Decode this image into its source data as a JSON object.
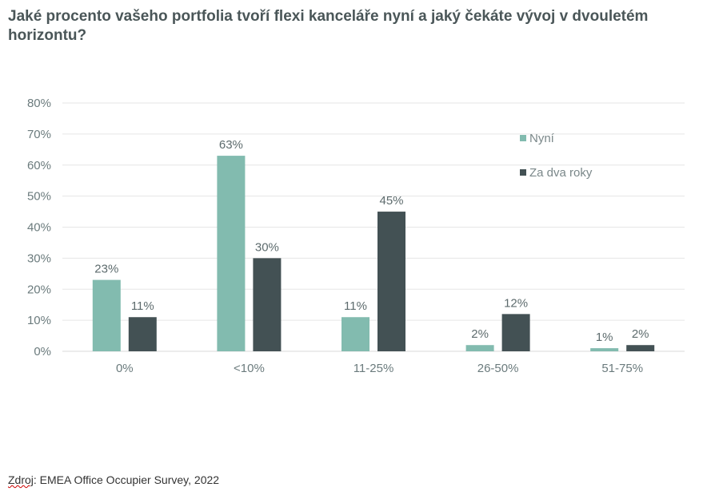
{
  "title": "Jaké procento vašeho portfolia tvoří flexi kanceláře nyní a jaký čekáte vývoj v dvouletém horizontu?",
  "source": {
    "label": "Zdroj",
    "text": ": EMEA Office Occupier Survey, 2022"
  },
  "colors": {
    "nyni": "#82bbaf",
    "za_dva_roky": "#435154",
    "grid": "#e6e6e6",
    "axis_text": "#6b7b7d"
  },
  "chart_data": {
    "type": "bar",
    "categories": [
      "0%",
      "<10%",
      "11-25%",
      "26-50%",
      "51-75%"
    ],
    "series": [
      {
        "name": "Nyní",
        "values": [
          23,
          63,
          11,
          2,
          1
        ]
      },
      {
        "name": "Za dva roky",
        "values": [
          11,
          30,
          45,
          12,
          2
        ]
      }
    ],
    "data_labels": [
      [
        "23%",
        "63%",
        "11%",
        "2%",
        "1%"
      ],
      [
        "11%",
        "30%",
        "45%",
        "12%",
        "2%"
      ]
    ],
    "yticks": [
      "0%",
      "10%",
      "20%",
      "30%",
      "40%",
      "50%",
      "60%",
      "70%",
      "80%"
    ],
    "ylim": [
      0,
      80
    ],
    "grid": true,
    "legend_position": "top-right"
  }
}
